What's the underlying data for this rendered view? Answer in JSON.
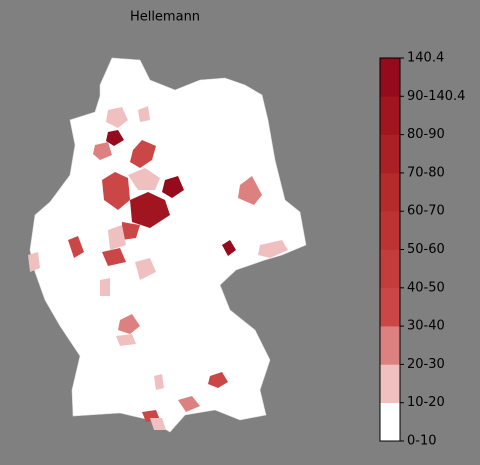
{
  "title": "Hellemann",
  "legend": {
    "labels": [
      "0-10",
      "10-20",
      "20-30",
      "30-40",
      "40-50",
      "50-60",
      "60-70",
      "70-80",
      "80-90",
      "90-140.4",
      "140.4"
    ],
    "colors": [
      "#ffffff",
      "#f0c0c0",
      "#dc8080",
      "#cb4747",
      "#c43c3c",
      "#bd3232",
      "#b52a2a",
      "#ab2024",
      "#a0151f",
      "#950a1c"
    ]
  }
}
